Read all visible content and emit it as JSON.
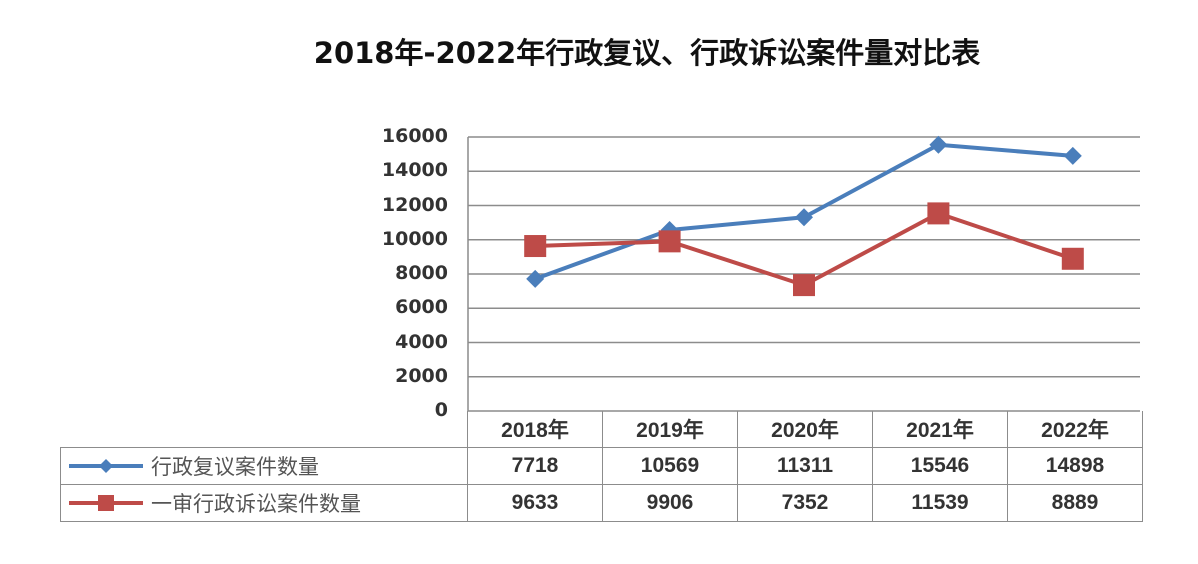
{
  "title": "2018年-2022年行政复议、行政诉讼案件量对比表",
  "y_axis": {
    "ticks": [
      "16000",
      "14000",
      "12000",
      "10000",
      "8000",
      "6000",
      "4000",
      "2000",
      "0"
    ]
  },
  "table": {
    "years": [
      "2018年",
      "2019年",
      "2020年",
      "2021年",
      "2022年"
    ],
    "rows": [
      {
        "label": "行政复议案件数量",
        "color": "#4a7ebb",
        "marker": "diamond",
        "values": [
          "7718",
          "10569",
          "11311",
          "15546",
          "14898"
        ]
      },
      {
        "label": "一审行政诉讼案件数量",
        "color": "#be4b48",
        "marker": "square",
        "values": [
          "9633",
          "9906",
          "7352",
          "11539",
          "8889"
        ]
      }
    ]
  },
  "chart_data": {
    "type": "line",
    "title": "2018年-2022年行政复议、行政诉讼案件量对比表",
    "categories": [
      "2018年",
      "2019年",
      "2020年",
      "2021年",
      "2022年"
    ],
    "series": [
      {
        "name": "行政复议案件数量",
        "color": "#4a7ebb",
        "marker": "diamond",
        "values": [
          7718,
          10569,
          11311,
          15546,
          14898
        ]
      },
      {
        "name": "一审行政诉讼案件数量",
        "color": "#be4b48",
        "marker": "square",
        "values": [
          9633,
          9906,
          7352,
          11539,
          8889
        ]
      }
    ],
    "xlabel": "",
    "ylabel": "",
    "ylim": [
      0,
      16000
    ],
    "yticks": [
      0,
      2000,
      4000,
      6000,
      8000,
      10000,
      12000,
      14000,
      16000
    ],
    "grid": true,
    "legend_position": "data-table-left"
  }
}
